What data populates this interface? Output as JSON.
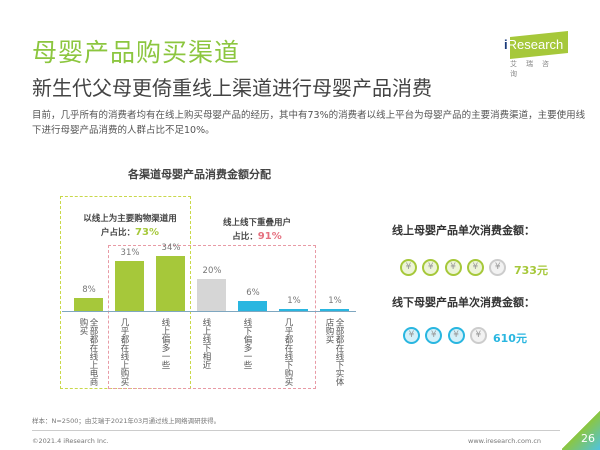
{
  "header": {
    "title": "母婴产品购买渠道",
    "subtitle": "新生代父母更倚重线上渠道进行母婴产品消费",
    "description": "目前，几乎所有的消费者均有在线上购买母婴产品的经历，其中有73%的消费者以线上平台为母婴产品的主要消费渠道，主要使用线下进行母婴产品消费的人群占比不足10%。"
  },
  "logo": {
    "text": "iResearch",
    "cn": "艾瑞咨询"
  },
  "chart_data": {
    "type": "bar",
    "title": "各渠道母婴产品消费金额分配",
    "categories": [
      "全部都在线上电商购买",
      "几乎都在线上购买",
      "线上偏多一些",
      "线上线下相近",
      "线下偏多一些",
      "几乎都在线下购买",
      "全部都在线下实体店购买"
    ],
    "values": [
      8,
      31,
      34,
      20,
      6,
      1,
      1
    ],
    "labels": [
      "8%",
      "31%",
      "34%",
      "20%",
      "6%",
      "1%",
      "1%"
    ],
    "colors": [
      "#a6c83a",
      "#a6c83a",
      "#a6c83a",
      "#d6d6d6",
      "#29b6e0",
      "#29b6e0",
      "#29b6e0"
    ],
    "ylim": [
      0,
      34
    ],
    "annotations": [
      {
        "text": "以线上为主要购物渠道用户占比：",
        "value": "73%",
        "color": "#a6c83a"
      },
      {
        "text": "线上线下重叠用户占比：",
        "value": "91%",
        "color": "#e5707f"
      }
    ]
  },
  "spend": {
    "online": {
      "label": "线上母婴产品单次消费金额：",
      "amount": "733元",
      "color": "#a6c83a",
      "coins": 4.7
    },
    "offline": {
      "label": "线下母婴产品单次消费金额：",
      "amount": "610元",
      "color": "#29b6e0",
      "coins": 3.9
    },
    "coin_symbol": "¥"
  },
  "footer": {
    "sample": "样本：N=2500；由艾瑞于2021年03月通过线上网络调研获得。",
    "copyright": "©2021.4 iResearch Inc.",
    "site": "www.iresearch.com.cn",
    "page": "26"
  }
}
